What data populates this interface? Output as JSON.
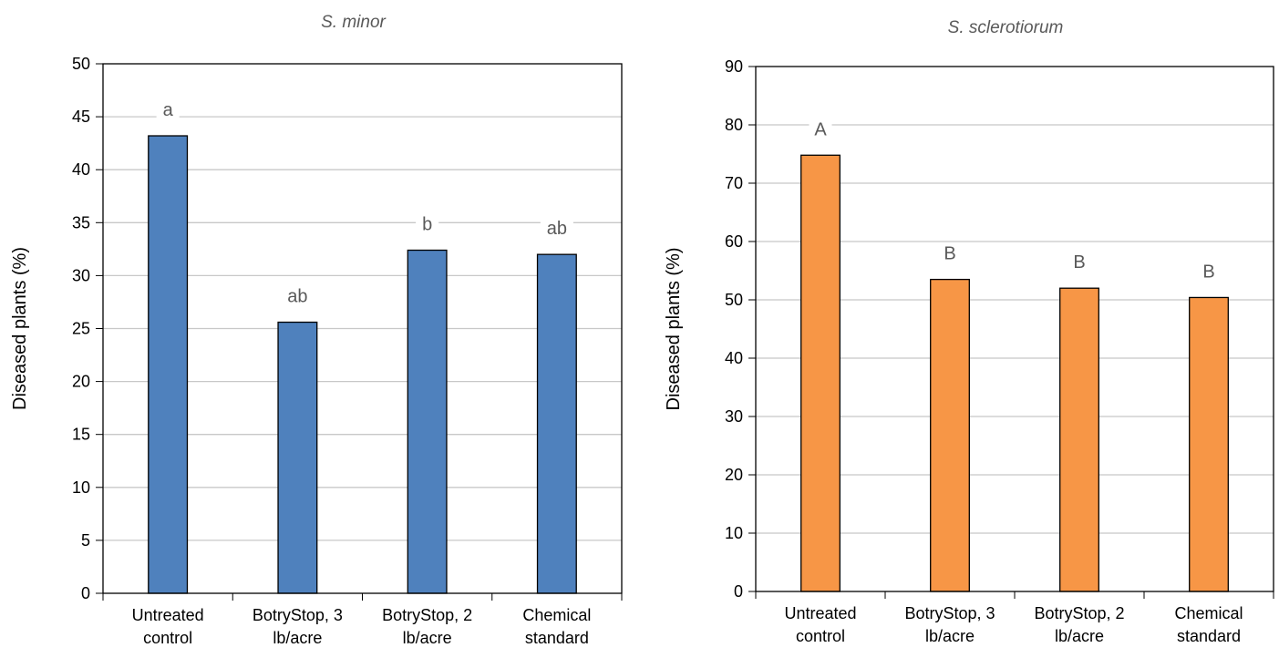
{
  "chart_data": [
    {
      "type": "bar",
      "title": "S. minor",
      "xlabel": "",
      "ylabel": "Diseased plants (%)",
      "ylim": [
        0,
        50
      ],
      "ytick_step": 5,
      "grid": true,
      "categories": [
        [
          "Untreated",
          "control"
        ],
        [
          "BotryStop, 3",
          "lb/acre"
        ],
        [
          "BotryStop, 2",
          "lb/acre"
        ],
        [
          "Chemical",
          "standard"
        ]
      ],
      "values": [
        43.2,
        25.6,
        32.4,
        32.0
      ],
      "labels": [
        "a",
        "ab",
        "b",
        "ab"
      ],
      "color": "#4f81bd"
    },
    {
      "type": "bar",
      "title": "S. sclerotiorum",
      "xlabel": "",
      "ylabel": "Diseased plants (%)",
      "ylim": [
        0,
        90
      ],
      "ytick_step": 10,
      "grid": true,
      "categories": [
        [
          "Untreated",
          "control"
        ],
        [
          "BotryStop, 3",
          "lb/acre"
        ],
        [
          "BotryStop, 2",
          "lb/acre"
        ],
        [
          "Chemical",
          "standard"
        ]
      ],
      "values": [
        74.8,
        53.5,
        52.0,
        50.4
      ],
      "labels": [
        "A",
        "B",
        "B",
        "B"
      ],
      "color": "#f79646"
    }
  ]
}
